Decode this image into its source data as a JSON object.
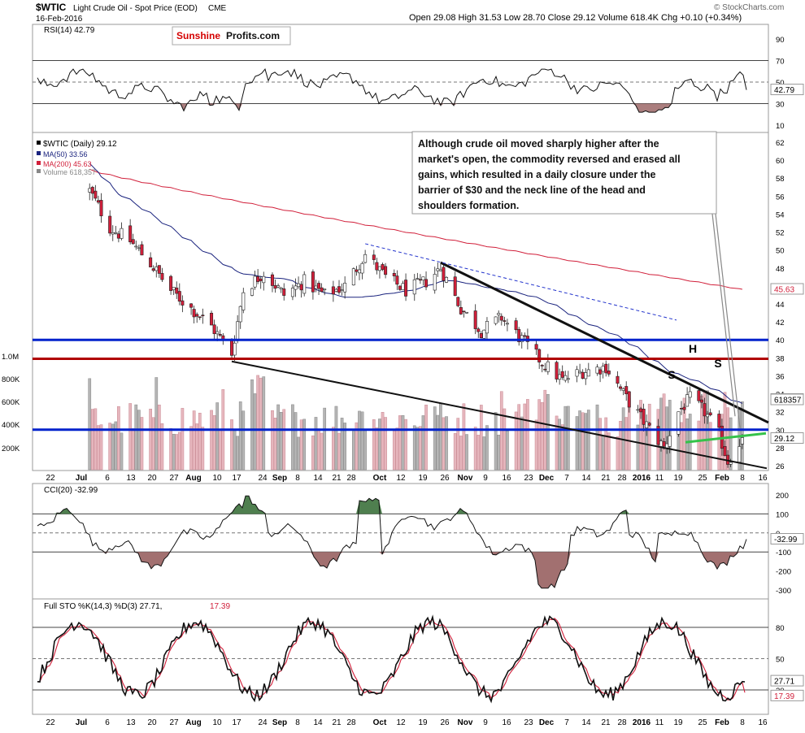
{
  "header": {
    "symbol": "$WTIC",
    "name": "Light Crude Oil - Spot Price (EOD)",
    "exchange": "CME",
    "date": "16-Feb-2016",
    "ohlc": "Open 29.08  High 31.53  Low 28.70  Close 29.12  Volume 618.4K  Chg +0.10 (+0.34%)",
    "watermark": "© StockCharts.com"
  },
  "logo": {
    "red": "Sunshine",
    "black": "Profits.com"
  },
  "annotation": "Although crude oil moved sharply higher after the market's open, the commodity reversed and erased all gains, which resulted in a daily closure under the barrier of $30 and the neck line of the head and shoulders formation.",
  "pattern_labels": [
    "S",
    "H",
    "S"
  ],
  "colors": {
    "up_candle": "#ffffff",
    "down_candle": "#d11f3a",
    "ma50": "#1a237e",
    "ma200": "#d11f3a",
    "support_blue": "#0022cc",
    "resistance_red": "#b00000",
    "neckline": "#35c24a",
    "rsi_fill": "#a27070",
    "cci_pos_fill": "#4f7f4f"
  },
  "chart_data": [
    {
      "type": "line",
      "title": "RSI(14) 42.79",
      "series": [
        {
          "name": "RSI(14)",
          "last": 42.79
        }
      ],
      "y_ticks": [
        90,
        70,
        50,
        30,
        10
      ],
      "levels": [
        70,
        50,
        30
      ],
      "last_label": "42.79",
      "grid": false
    },
    {
      "type": "bar",
      "title": "$WTIC (Daily) 29.12",
      "legend": [
        {
          "name": "$WTIC (Daily) 29.12",
          "color": "#000000"
        },
        {
          "name": "MA(50) 33.56",
          "color": "#1a237e"
        },
        {
          "name": "MA(200) 45.63",
          "color": "#d11f3a"
        },
        {
          "name": "Volume 618,357",
          "color": "#888888"
        }
      ],
      "y_ticks": [
        62,
        60,
        58,
        56,
        54,
        52,
        50,
        48,
        46,
        44,
        42,
        40,
        38,
        36,
        34,
        32,
        30,
        28,
        26
      ],
      "volume_ticks": [
        "1.0M",
        "800K",
        "600K",
        "400K",
        "200K"
      ],
      "last_labels": {
        "ma50": "33.56",
        "ma200": "45.63",
        "close": "29.12",
        "volume": "618357"
      },
      "horizontal_levels": [
        {
          "value": 40.0,
          "color": "#0022cc"
        },
        {
          "value": 37.9,
          "color": "#b00000"
        },
        {
          "value": 30.0,
          "color": "#0022cc"
        }
      ],
      "close_series": [
        {
          "date": "2015-07-06",
          "close": 56.6
        },
        {
          "date": "2015-07-13",
          "close": 52.5
        },
        {
          "date": "2015-07-20",
          "close": 51.0
        },
        {
          "date": "2015-07-27",
          "close": 48.5
        },
        {
          "date": "2015-08-03",
          "close": 45.5
        },
        {
          "date": "2015-08-10",
          "close": 43.5
        },
        {
          "date": "2015-08-17",
          "close": 41.5
        },
        {
          "date": "2015-08-24",
          "close": 38.5
        },
        {
          "date": "2015-08-28",
          "close": 45.5
        },
        {
          "date": "2015-09-04",
          "close": 47.5
        },
        {
          "date": "2015-09-11",
          "close": 45.0
        },
        {
          "date": "2015-09-18",
          "close": 46.5
        },
        {
          "date": "2015-09-25",
          "close": 45.0
        },
        {
          "date": "2015-10-02",
          "close": 46.0
        },
        {
          "date": "2015-10-09",
          "close": 49.5
        },
        {
          "date": "2015-10-16",
          "close": 47.0
        },
        {
          "date": "2015-10-23",
          "close": 45.5
        },
        {
          "date": "2015-10-30",
          "close": 46.5
        },
        {
          "date": "2015-11-04",
          "close": 48.0
        },
        {
          "date": "2015-11-11",
          "close": 43.5
        },
        {
          "date": "2015-11-18",
          "close": 41.0
        },
        {
          "date": "2015-11-25",
          "close": 42.5
        },
        {
          "date": "2015-12-02",
          "close": 40.0
        },
        {
          "date": "2015-12-09",
          "close": 37.5
        },
        {
          "date": "2015-12-16",
          "close": 35.5
        },
        {
          "date": "2015-12-23",
          "close": 36.5
        },
        {
          "date": "2015-12-31",
          "close": 37.0
        },
        {
          "date": "2016-01-07",
          "close": 33.5
        },
        {
          "date": "2016-01-14",
          "close": 30.5
        },
        {
          "date": "2016-01-20",
          "close": 28.0
        },
        {
          "date": "2016-01-25",
          "close": 32.0
        },
        {
          "date": "2016-01-29",
          "close": 33.5
        },
        {
          "date": "2016-02-03",
          "close": 32.0
        },
        {
          "date": "2016-02-08",
          "close": 29.5
        },
        {
          "date": "2016-02-11",
          "close": 26.5
        },
        {
          "date": "2016-02-16",
          "close": 29.12
        }
      ]
    },
    {
      "type": "line",
      "title": "CCI(20) -32.99",
      "series": [
        {
          "name": "CCI(20)",
          "last": -32.99
        }
      ],
      "y_ticks": [
        200,
        100,
        0,
        -100,
        -200,
        -300
      ],
      "levels": [
        100,
        0,
        -100
      ],
      "last_label": "-32.99"
    },
    {
      "type": "line",
      "title": "Full STO %K(14,3) %D(3) 27.71, 17.39",
      "title_main": "Full STO %K(14,3) %D(3) 27.71,",
      "title_red": "17.39",
      "series": [
        {
          "name": "%K(14,3)",
          "last": 27.71,
          "color": "#000000"
        },
        {
          "name": "%D(3)",
          "last": 17.39,
          "color": "#d11f3a"
        }
      ],
      "y_ticks": [
        80,
        50,
        20
      ],
      "levels": [
        80,
        50,
        20
      ],
      "last_labels": [
        "27.71",
        "17.39"
      ]
    }
  ],
  "x_axis_ticks": [
    {
      "label": "22",
      "bold": false
    },
    {
      "label": "Jul",
      "bold": true
    },
    {
      "label": "6",
      "bold": false
    },
    {
      "label": "13",
      "bold": false
    },
    {
      "label": "20",
      "bold": false
    },
    {
      "label": "27",
      "bold": false
    },
    {
      "label": "Aug",
      "bold": true
    },
    {
      "label": "10",
      "bold": false
    },
    {
      "label": "17",
      "bold": false
    },
    {
      "label": "24",
      "bold": false
    },
    {
      "label": "Sep",
      "bold": true
    },
    {
      "label": "8",
      "bold": false
    },
    {
      "label": "14",
      "bold": false
    },
    {
      "label": "21",
      "bold": false
    },
    {
      "label": "28",
      "bold": false
    },
    {
      "label": "Oct",
      "bold": true
    },
    {
      "label": "12",
      "bold": false
    },
    {
      "label": "19",
      "bold": false
    },
    {
      "label": "26",
      "bold": false
    },
    {
      "label": "Nov",
      "bold": true
    },
    {
      "label": "9",
      "bold": false
    },
    {
      "label": "16",
      "bold": false
    },
    {
      "label": "23",
      "bold": false
    },
    {
      "label": "Dec",
      "bold": true
    },
    {
      "label": "7",
      "bold": false
    },
    {
      "label": "14",
      "bold": false
    },
    {
      "label": "21",
      "bold": false
    },
    {
      "label": "28",
      "bold": false
    },
    {
      "label": "2016",
      "bold": true
    },
    {
      "label": "11",
      "bold": false
    },
    {
      "label": "19",
      "bold": false
    },
    {
      "label": "25",
      "bold": false
    },
    {
      "label": "Feb",
      "bold": true
    },
    {
      "label": "8",
      "bold": false
    },
    {
      "label": "16",
      "bold": false
    },
    {
      "label": "22",
      "bold": false
    }
  ]
}
